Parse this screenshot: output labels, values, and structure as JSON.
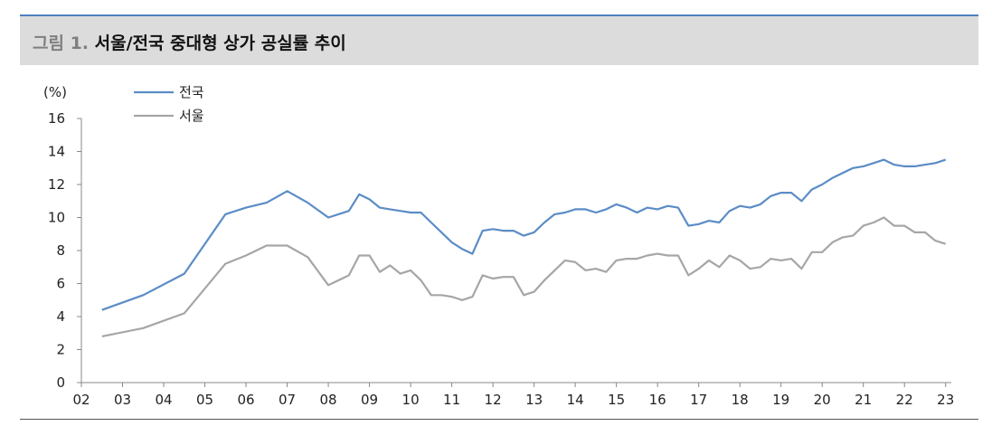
{
  "figure": {
    "label": "그림 1.",
    "title": "서울/전국 중대형 상가 공실률 추이"
  },
  "colors": {
    "national": "#5b8cc6",
    "seoul": "#a6a6a6",
    "accent": "#4f81bd",
    "title_bg": "#dcdcdc"
  },
  "chart_data": {
    "type": "line",
    "unit_label": "(%)",
    "ylim": [
      0,
      16
    ],
    "yticks": [
      "0",
      "2",
      "4",
      "6",
      "8",
      "10",
      "12",
      "14",
      "16"
    ],
    "xlim": [
      2002,
      2023.05
    ],
    "xticks": [
      "02",
      "03",
      "04",
      "05",
      "06",
      "07",
      "08",
      "09",
      "10",
      "11",
      "12",
      "13",
      "14",
      "15",
      "16",
      "17",
      "18",
      "19",
      "20",
      "21",
      "22",
      "23"
    ],
    "grid": false,
    "legend_position": "top-left",
    "series": [
      {
        "name": "전국",
        "key": "national",
        "x": [
          2002.5,
          2003.5,
          2004.5,
          2005.5,
          2006.0,
          2006.5,
          2007.0,
          2007.5,
          2008.0,
          2008.5,
          2008.75,
          2009.0,
          2009.25,
          2009.5,
          2009.75,
          2010.0,
          2010.25,
          2010.5,
          2010.75,
          2011.0,
          2011.25,
          2011.5,
          2011.75,
          2012.0,
          2012.25,
          2012.5,
          2012.75,
          2013.0,
          2013.25,
          2013.5,
          2013.75,
          2014.0,
          2014.25,
          2014.5,
          2014.75,
          2015.0,
          2015.25,
          2015.5,
          2015.75,
          2016.0,
          2016.25,
          2016.5,
          2016.75,
          2017.0,
          2017.25,
          2017.5,
          2017.75,
          2018.0,
          2018.25,
          2018.5,
          2018.75,
          2019.0,
          2019.25,
          2019.5,
          2019.75,
          2020.0,
          2020.25,
          2020.5,
          2020.75,
          2021.0,
          2021.25,
          2021.5,
          2021.75,
          2022.0,
          2022.25,
          2022.5,
          2022.75,
          2023.0
        ],
        "values": [
          4.4,
          5.3,
          6.6,
          10.2,
          10.6,
          10.9,
          11.6,
          10.9,
          10.0,
          10.4,
          11.4,
          11.1,
          10.6,
          10.5,
          10.4,
          10.3,
          10.3,
          9.7,
          9.1,
          8.5,
          8.1,
          7.8,
          9.2,
          9.3,
          9.2,
          9.2,
          8.9,
          9.1,
          9.7,
          10.2,
          10.3,
          10.5,
          10.5,
          10.3,
          10.5,
          10.8,
          10.6,
          10.3,
          10.6,
          10.5,
          10.7,
          10.6,
          9.5,
          9.6,
          9.8,
          9.7,
          10.4,
          10.7,
          10.6,
          10.8,
          11.3,
          11.5,
          11.5,
          11.0,
          11.7,
          12.0,
          12.4,
          12.7,
          13.0,
          13.1,
          13.3,
          13.5,
          13.2,
          13.1,
          13.1,
          13.2,
          13.3,
          13.5
        ]
      },
      {
        "name": "서울",
        "key": "seoul",
        "x": [
          2002.5,
          2003.5,
          2004.5,
          2005.5,
          2006.0,
          2006.5,
          2007.0,
          2007.5,
          2008.0,
          2008.5,
          2008.75,
          2009.0,
          2009.25,
          2009.5,
          2009.75,
          2010.0,
          2010.25,
          2010.5,
          2010.75,
          2011.0,
          2011.25,
          2011.5,
          2011.75,
          2012.0,
          2012.25,
          2012.5,
          2012.75,
          2013.0,
          2013.25,
          2013.5,
          2013.75,
          2014.0,
          2014.25,
          2014.5,
          2014.75,
          2015.0,
          2015.25,
          2015.5,
          2015.75,
          2016.0,
          2016.25,
          2016.5,
          2016.75,
          2017.0,
          2017.25,
          2017.5,
          2017.75,
          2018.0,
          2018.25,
          2018.5,
          2018.75,
          2019.0,
          2019.25,
          2019.5,
          2019.75,
          2020.0,
          2020.25,
          2020.5,
          2020.75,
          2021.0,
          2021.25,
          2021.5,
          2021.75,
          2022.0,
          2022.25,
          2022.5,
          2022.75,
          2023.0
        ],
        "values": [
          2.8,
          3.3,
          4.2,
          7.2,
          7.7,
          8.3,
          8.3,
          7.6,
          5.9,
          6.5,
          7.7,
          7.7,
          6.7,
          7.1,
          6.6,
          6.8,
          6.2,
          5.3,
          5.3,
          5.2,
          5.0,
          5.2,
          6.5,
          6.3,
          6.4,
          6.4,
          5.3,
          5.5,
          6.2,
          6.8,
          7.4,
          7.3,
          6.8,
          6.9,
          6.7,
          7.4,
          7.5,
          7.5,
          7.7,
          7.8,
          7.7,
          7.7,
          6.5,
          6.9,
          7.4,
          7.0,
          7.7,
          7.4,
          6.9,
          7.0,
          7.5,
          7.4,
          7.5,
          6.9,
          7.9,
          7.9,
          8.5,
          8.8,
          8.9,
          9.5,
          9.7,
          10.0,
          9.5,
          9.5,
          9.1,
          9.1,
          8.6,
          8.4
        ]
      }
    ]
  }
}
